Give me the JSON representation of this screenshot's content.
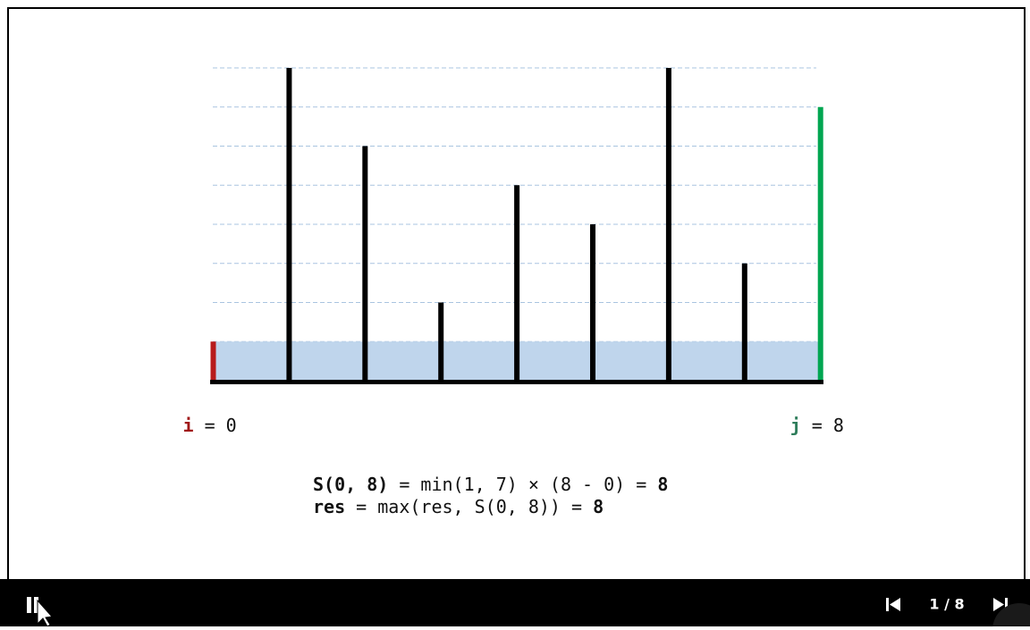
{
  "bars": {
    "heights": [
      1,
      8,
      6,
      2,
      5,
      4,
      8,
      3,
      7
    ]
  },
  "pointers": {
    "i": {
      "name": "i",
      "value": 0
    },
    "j": {
      "name": "j",
      "value": 8
    }
  },
  "formula": {
    "line1": {
      "lhs": "S(0, 8)",
      "expr": "= min(1, 7) × (8 - 0) =",
      "result": "8"
    },
    "line2": {
      "lhs": "res",
      "expr": "= max(res, S(0, 8)) =",
      "result": "8"
    }
  },
  "controls": {
    "progress": "1 / 8"
  }
}
